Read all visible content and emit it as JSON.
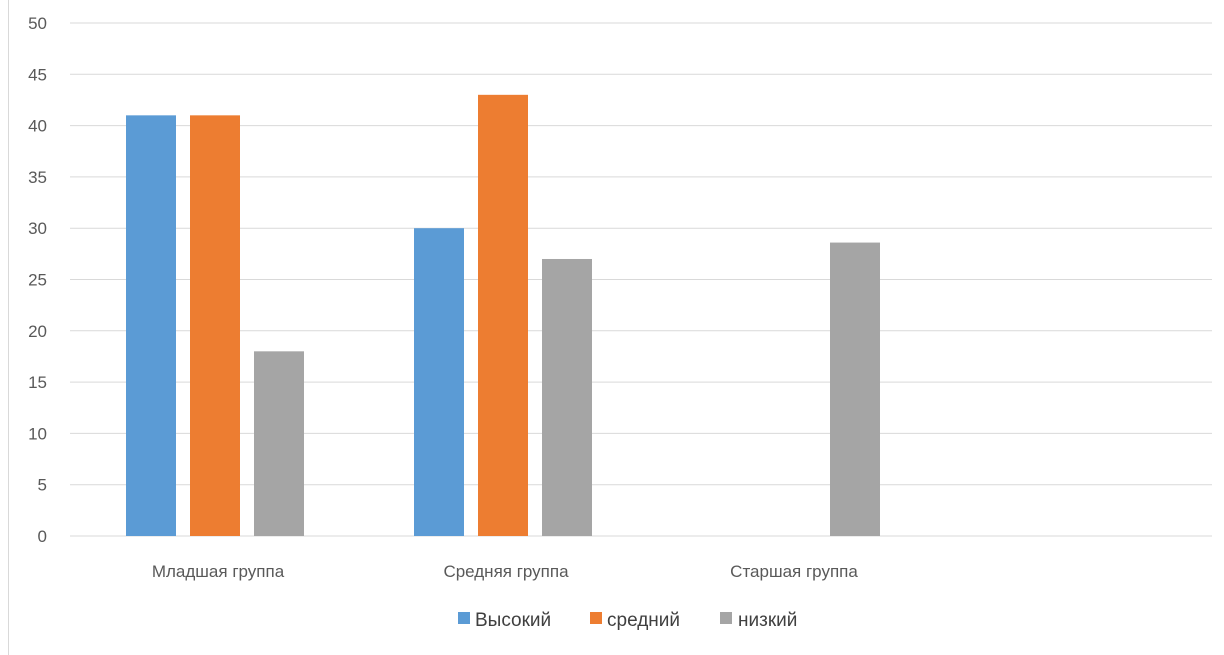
{
  "chart_data": {
    "type": "bar",
    "title": "",
    "xlabel": "",
    "ylabel": "",
    "categories": [
      "Младшая группа",
      "Средняя группа",
      "Старшая группа"
    ],
    "series": [
      {
        "name": "Высокий",
        "values": [
          41,
          30,
          0
        ],
        "color": "#5b9bd5"
      },
      {
        "name": "средний",
        "values": [
          41,
          43,
          0
        ],
        "color": "#ed7d31"
      },
      {
        "name": "низкий",
        "values": [
          18,
          27,
          28.6
        ],
        "color": "#a5a5a5"
      }
    ],
    "ylim": [
      0,
      50
    ],
    "yticks": [
      "0",
      "5",
      "10",
      "15",
      "20",
      "25",
      "30",
      "35",
      "40",
      "45",
      "50"
    ],
    "grid": true,
    "legend_position": "bottom"
  }
}
